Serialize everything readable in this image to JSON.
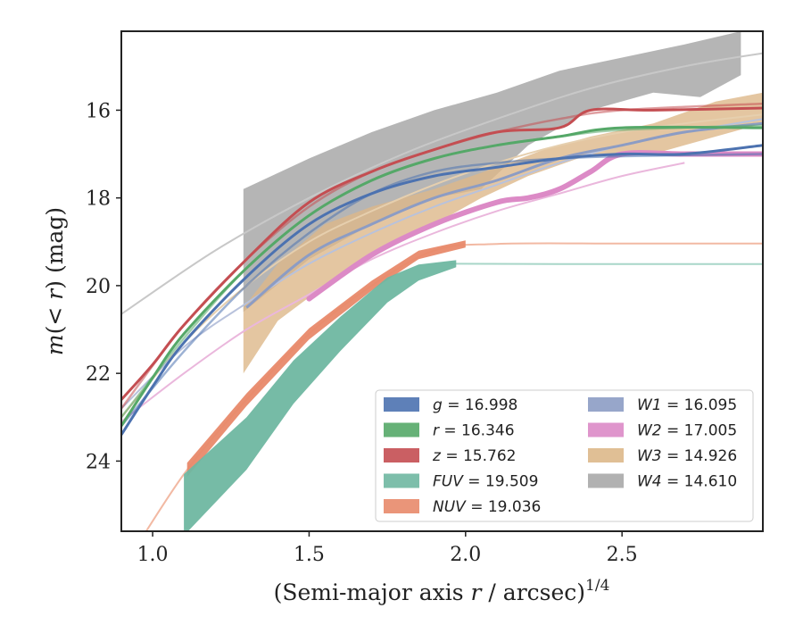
{
  "chart_data": {
    "type": "line",
    "title": "",
    "xlabel_main": "(Semi-major axis ",
    "xlabel_var": "r",
    "xlabel_rest": " / arcsec)",
    "xlabel_sup": "1/4",
    "ylabel_m": "m",
    "ylabel_paren": "(< ",
    "ylabel_r": "r",
    "ylabel_rest": ") (mag)",
    "xlim": [
      0.9,
      2.95
    ],
    "ylim": [
      25.6,
      14.2
    ],
    "y_inverted": true,
    "xticks": [
      1.0,
      1.5,
      2.0,
      2.5
    ],
    "xtick_labels": [
      "1.0",
      "1.5",
      "2.0",
      "2.5"
    ],
    "yticks": [
      16,
      18,
      20,
      22,
      24
    ],
    "ytick_labels": [
      "16",
      "18",
      "20",
      "22",
      "24"
    ],
    "grid": false,
    "legend_position": "lower-right",
    "legend": [
      {
        "name": "g",
        "value": "16.998",
        "color": "#4c72b0"
      },
      {
        "name": "r",
        "value": "16.346",
        "color": "#55a868"
      },
      {
        "name": "z",
        "value": "15.762",
        "color": "#c44e52"
      },
      {
        "name": "FUV",
        "value": "19.509",
        "color": "#6fb7a1"
      },
      {
        "name": "NUV",
        "value": "19.036",
        "color": "#e8896a"
      },
      {
        "name": "W1",
        "value": "16.095",
        "color": "#8c9cc4"
      },
      {
        "name": "W2",
        "value": "17.005",
        "color": "#dc8ac6"
      },
      {
        "name": "W3",
        "value": "14.926",
        "color": "#ddb88a"
      },
      {
        "name": "W4",
        "value": "14.610",
        "color": "#a8a8a8"
      }
    ],
    "series": [
      {
        "name": "W4",
        "color": "#a8a8a8",
        "fit": [
          [
            0.9,
            20.65
          ],
          [
            1.2,
            19.2
          ],
          [
            1.5,
            18.0
          ],
          [
            1.8,
            17.0
          ],
          [
            2.1,
            16.2
          ],
          [
            2.4,
            15.5
          ],
          [
            2.7,
            15.0
          ],
          [
            2.95,
            14.7
          ]
        ],
        "band_upper": [
          [
            1.29,
            17.8
          ],
          [
            1.5,
            17.1
          ],
          [
            1.7,
            16.5
          ],
          [
            1.9,
            16.0
          ],
          [
            2.1,
            15.6
          ],
          [
            2.3,
            15.1
          ],
          [
            2.5,
            14.8
          ],
          [
            2.7,
            14.5
          ],
          [
            2.88,
            14.2
          ]
        ],
        "band_lower": [
          [
            1.29,
            20.6
          ],
          [
            1.5,
            19.4
          ],
          [
            1.7,
            18.6
          ],
          [
            1.9,
            18.0
          ],
          [
            2.05,
            17.8
          ],
          [
            2.2,
            16.8
          ],
          [
            2.4,
            16.0
          ],
          [
            2.6,
            15.6
          ],
          [
            2.75,
            15.7
          ],
          [
            2.88,
            15.2
          ]
        ]
      },
      {
        "name": "W3",
        "color": "#ddb88a",
        "fit": [
          [
            0.9,
            23.0
          ],
          [
            1.1,
            21.3
          ],
          [
            1.3,
            20.0
          ],
          [
            1.5,
            19.0
          ],
          [
            1.7,
            18.3
          ],
          [
            1.9,
            17.7
          ],
          [
            2.1,
            17.2
          ],
          [
            2.3,
            16.8
          ],
          [
            2.5,
            16.5
          ],
          [
            2.7,
            16.3
          ],
          [
            2.95,
            16.1
          ]
        ],
        "band_upper": [
          [
            1.29,
            20.5
          ],
          [
            1.4,
            19.5
          ],
          [
            1.55,
            18.6
          ],
          [
            1.7,
            18.2
          ],
          [
            1.9,
            17.8
          ],
          [
            2.1,
            17.3
          ],
          [
            2.25,
            16.9
          ],
          [
            2.4,
            16.6
          ],
          [
            2.6,
            16.3
          ],
          [
            2.8,
            15.8
          ],
          [
            2.95,
            15.6
          ]
        ],
        "band_lower": [
          [
            1.29,
            22.0
          ],
          [
            1.4,
            20.8
          ],
          [
            1.55,
            20.0
          ],
          [
            1.7,
            19.3
          ],
          [
            1.9,
            18.6
          ],
          [
            2.05,
            18.0
          ],
          [
            2.2,
            17.5
          ],
          [
            2.4,
            17.0
          ],
          [
            2.6,
            17.0
          ],
          [
            2.8,
            16.6
          ],
          [
            2.95,
            16.3
          ]
        ]
      },
      {
        "name": "W1",
        "color": "#8c9cc4",
        "fit": [
          [
            0.9,
            22.8
          ],
          [
            1.1,
            21.4
          ],
          [
            1.3,
            20.4
          ],
          [
            1.5,
            19.5
          ],
          [
            1.7,
            18.8
          ],
          [
            1.9,
            18.2
          ],
          [
            2.1,
            17.7
          ],
          [
            2.3,
            17.2
          ],
          [
            2.5,
            16.8
          ],
          [
            2.7,
            16.5
          ],
          [
            2.95,
            16.2
          ]
        ],
        "points": [
          [
            1.3,
            20.5
          ],
          [
            1.5,
            19.3
          ],
          [
            1.7,
            18.6
          ],
          [
            1.9,
            18.0
          ],
          [
            2.1,
            17.6
          ],
          [
            2.3,
            17.1
          ],
          [
            2.5,
            16.8
          ],
          [
            2.7,
            16.5
          ],
          [
            2.95,
            16.3
          ]
        ]
      },
      {
        "name": "W2",
        "color": "#dc8ac6",
        "fit": [
          [
            0.9,
            23.1
          ],
          [
            1.1,
            22.0
          ],
          [
            1.3,
            21.0
          ],
          [
            1.5,
            20.2
          ],
          [
            1.7,
            19.4
          ],
          [
            1.9,
            18.8
          ],
          [
            2.1,
            18.3
          ],
          [
            2.3,
            17.9
          ],
          [
            2.5,
            17.5
          ],
          [
            2.7,
            17.2
          ]
        ],
        "points": [
          [
            1.5,
            20.3
          ],
          [
            1.7,
            19.3
          ],
          [
            1.9,
            18.6
          ],
          [
            2.1,
            18.1
          ],
          [
            2.2,
            18.0
          ],
          [
            2.3,
            17.8
          ],
          [
            2.4,
            17.4
          ],
          [
            2.5,
            17.0
          ],
          [
            2.7,
            17.0
          ],
          [
            2.95,
            17.0
          ]
        ]
      },
      {
        "name": "g",
        "color": "#4c72b0",
        "fit": [
          [
            0.9,
            23.2
          ],
          [
            1.1,
            21.5
          ],
          [
            1.3,
            20.0
          ],
          [
            1.5,
            18.8
          ],
          [
            1.7,
            17.9
          ],
          [
            1.9,
            17.4
          ],
          [
            2.1,
            17.2
          ],
          [
            2.3,
            17.1
          ],
          [
            2.5,
            17.05
          ],
          [
            2.95,
            17.0
          ]
        ],
        "points": [
          [
            0.9,
            23.4
          ],
          [
            1.0,
            22.3
          ],
          [
            1.1,
            21.3
          ],
          [
            1.3,
            19.8
          ],
          [
            1.5,
            18.6
          ],
          [
            1.7,
            17.9
          ],
          [
            1.9,
            17.5
          ],
          [
            2.1,
            17.3
          ],
          [
            2.3,
            17.1
          ],
          [
            2.5,
            17.0
          ],
          [
            2.7,
            17.0
          ],
          [
            2.95,
            16.8
          ]
        ]
      },
      {
        "name": "r",
        "color": "#55a868",
        "fit": [
          [
            0.9,
            23.0
          ],
          [
            1.1,
            21.2
          ],
          [
            1.3,
            19.6
          ],
          [
            1.5,
            18.4
          ],
          [
            1.7,
            17.6
          ],
          [
            1.9,
            17.1
          ],
          [
            2.1,
            16.8
          ],
          [
            2.3,
            16.6
          ],
          [
            2.5,
            16.45
          ],
          [
            2.95,
            16.35
          ]
        ],
        "points": [
          [
            0.9,
            23.2
          ],
          [
            1.0,
            22.1
          ],
          [
            1.1,
            21.1
          ],
          [
            1.3,
            19.6
          ],
          [
            1.5,
            18.4
          ],
          [
            1.7,
            17.6
          ],
          [
            1.9,
            17.1
          ],
          [
            2.1,
            16.8
          ],
          [
            2.3,
            16.6
          ],
          [
            2.5,
            16.4
          ],
          [
            2.95,
            16.4
          ]
        ]
      },
      {
        "name": "z",
        "color": "#c44e52",
        "fit": [
          [
            0.9,
            22.8
          ],
          [
            1.1,
            20.9
          ],
          [
            1.3,
            19.4
          ],
          [
            1.5,
            18.2
          ],
          [
            1.7,
            17.4
          ],
          [
            1.9,
            16.9
          ],
          [
            2.1,
            16.5
          ],
          [
            2.3,
            16.2
          ],
          [
            2.5,
            16.0
          ],
          [
            2.95,
            15.85
          ]
        ],
        "points": [
          [
            0.9,
            22.6
          ],
          [
            1.0,
            21.8
          ],
          [
            1.1,
            20.9
          ],
          [
            1.3,
            19.4
          ],
          [
            1.5,
            18.1
          ],
          [
            1.7,
            17.4
          ],
          [
            1.9,
            16.9
          ],
          [
            2.1,
            16.5
          ],
          [
            2.3,
            16.4
          ],
          [
            2.4,
            16.0
          ],
          [
            2.6,
            16.0
          ],
          [
            2.95,
            15.95
          ]
        ]
      },
      {
        "name": "NUV",
        "color": "#e8896a",
        "fit": [
          [
            0.9,
            26.5
          ],
          [
            1.1,
            24.3
          ],
          [
            1.3,
            22.6
          ],
          [
            1.5,
            21.1
          ],
          [
            1.7,
            20.0
          ],
          [
            1.9,
            19.2
          ],
          [
            2.1,
            19.05
          ],
          [
            2.5,
            19.04
          ],
          [
            2.95,
            19.04
          ]
        ],
        "points": [
          [
            1.11,
            24.2
          ],
          [
            1.3,
            22.6
          ],
          [
            1.5,
            21.1
          ],
          [
            1.7,
            20.0
          ],
          [
            1.85,
            19.3
          ],
          [
            2.0,
            19.05
          ]
        ],
        "band_halfwidth": 0.16
      },
      {
        "name": "FUV",
        "color": "#6fb7a1",
        "fit": [
          [
            1.95,
            19.5
          ],
          [
            2.3,
            19.51
          ],
          [
            2.95,
            19.51
          ]
        ],
        "points": [
          [
            1.1,
            25.0
          ],
          [
            1.3,
            23.6
          ],
          [
            1.45,
            22.2
          ],
          [
            1.6,
            21.1
          ],
          [
            1.75,
            20.1
          ],
          [
            1.85,
            19.7
          ],
          [
            1.97,
            19.5
          ]
        ],
        "band_halfwidth_start": 0.7,
        "band_halfwidth_end": 0.08
      }
    ]
  }
}
